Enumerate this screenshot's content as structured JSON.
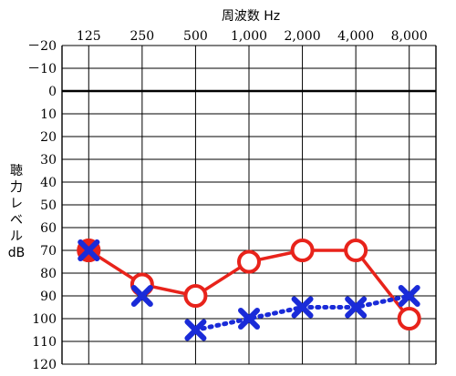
{
  "chart_data": {
    "type": "line",
    "title": "",
    "xlabel": "周波数 Hz",
    "ylabel_lines": [
      "聴",
      "力",
      "レ",
      "ベ",
      "ル",
      "dB"
    ],
    "x_ticks": [
      "125",
      "250",
      "500",
      "1,000",
      "2,000",
      "4,000",
      "8,000"
    ],
    "x": [
      125,
      250,
      500,
      1000,
      2000,
      4000,
      8000
    ],
    "y_ticks": [
      "－20",
      "－10",
      "0",
      "10",
      "20",
      "30",
      "40",
      "50",
      "60",
      "70",
      "80",
      "90",
      "100",
      "110",
      "120"
    ],
    "ylim": [
      -20,
      120
    ],
    "y_inverted": true,
    "grid": true,
    "series": [
      {
        "marker": "circle",
        "color": "#e8231b",
        "line_style": "solid",
        "values": [
          70,
          85,
          90,
          75,
          70,
          70,
          100
        ]
      },
      {
        "marker": "x",
        "color": "#1a2bd8",
        "line_style": "dotted",
        "values": [
          70,
          90,
          105,
          100,
          95,
          95,
          90
        ],
        "connect_from_index": 2
      }
    ]
  }
}
